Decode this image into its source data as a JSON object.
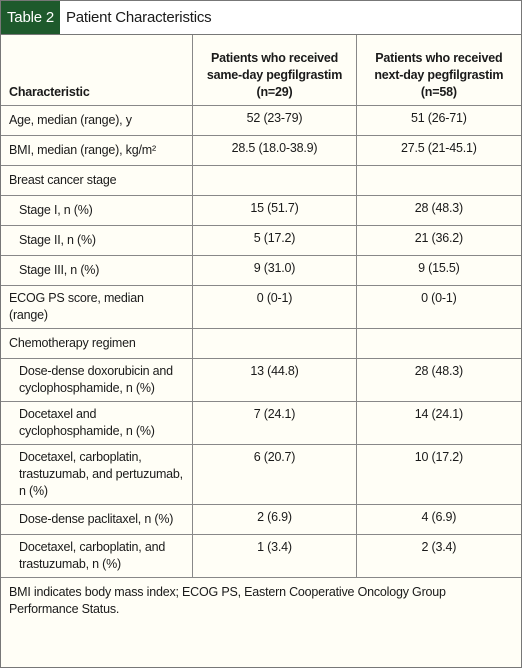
{
  "header": {
    "label": "Table 2",
    "title": "Patient Characteristics"
  },
  "table": {
    "columns": [
      "Characteristic",
      "Patients who received same-day pegfilgrastim (n=29)",
      "Patients who received next-day pegfilgrastim (n=58)"
    ],
    "rows": [
      [
        "Age, median (range), y",
        "52 (23-79)",
        "51 (26-71)"
      ],
      [
        "BMI, median (range), kg/m²",
        "28.5 (18.0-38.9)",
        "27.5 (21-45.1)"
      ],
      [
        "Breast cancer stage"
      ],
      [
        "Stage I, n (%)",
        "15 (51.7)",
        "28 (48.3)"
      ],
      [
        "Stage II, n (%)",
        "5 (17.2)",
        "21 (36.2)"
      ],
      [
        "Stage III, n (%)",
        "9 (31.0)",
        "9 (15.5)"
      ],
      [
        "ECOG PS score, median (range)",
        "0 (0-1)",
        "0 (0-1)"
      ],
      [
        "Chemotherapy regimen"
      ],
      [
        "Dose-dense doxorubicin and cyclophosphamide, n (%)",
        "13 (44.8)",
        "28 (48.3)"
      ],
      [
        "Docetaxel and cyclophosphamide, n (%)",
        "7 (24.1)",
        "14 (24.1)"
      ],
      [
        "Docetaxel, carboplatin, trastuzumab, and pertuzumab, n (%)",
        "6 (20.7)",
        "10 (17.2)"
      ],
      [
        "Dose-dense paclitaxel, n (%)",
        "2 (6.9)",
        "4 (6.9)"
      ],
      [
        "Docetaxel, carboplatin, and trastuzumab, n (%)",
        "1 (3.4)",
        "2 (3.4)"
      ]
    ]
  },
  "footnote": "BMI indicates body mass index; ECOG PS, Eastern Cooperative Oncology Group Performance Status."
}
